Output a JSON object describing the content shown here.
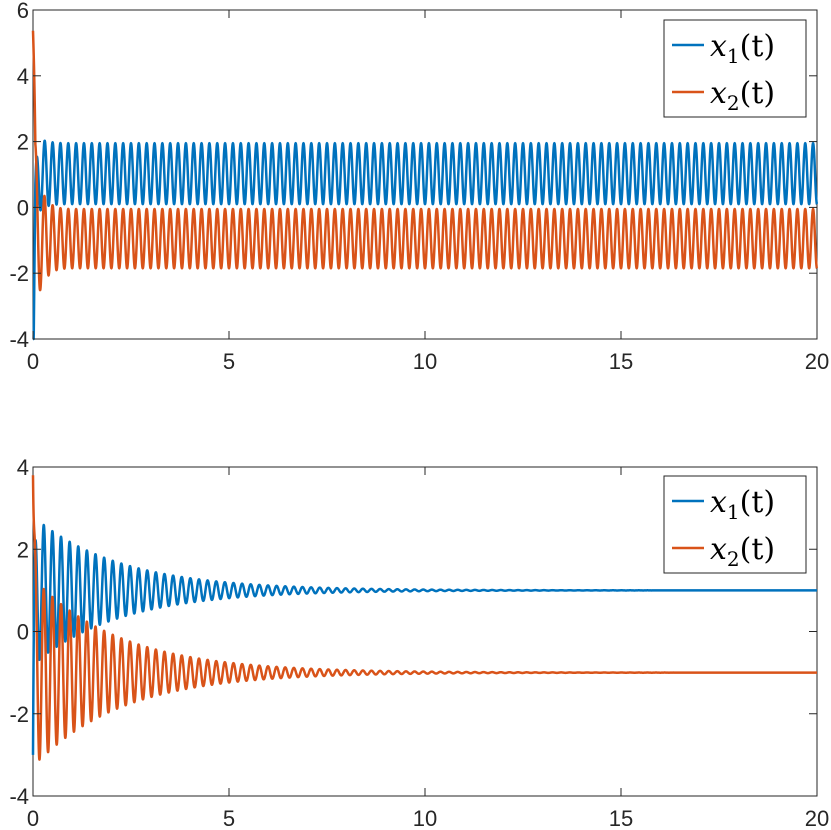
{
  "chart_data": [
    {
      "type": "line",
      "title": "",
      "xlabel": "",
      "ylabel": "",
      "xlim": [
        0,
        20
      ],
      "ylim": [
        -4,
        6
      ],
      "xticks": [
        "0",
        "5",
        "10",
        "15",
        "20"
      ],
      "yticks": [
        "-4",
        "-2",
        "0",
        "2",
        "4",
        "6"
      ],
      "grid": false,
      "legend_position": "top-right",
      "behavior": "sustained oscillation",
      "series": [
        {
          "name": "x_1(t)",
          "legend_base": "x",
          "legend_sub": "1",
          "legend_tail": "(t)",
          "color": "#0072BD",
          "initial": -3.6,
          "peak_initial": 3.2,
          "max": 1.95,
          "min": 0.1,
          "mid": 0.5,
          "period": 0.2
        },
        {
          "name": "x_2(t)",
          "legend_base": "x",
          "legend_sub": "2",
          "legend_tail": "(t)",
          "color": "#D95319",
          "initial": 3.0,
          "peak_initial": 5.3,
          "max": -0.05,
          "min": -1.85,
          "mid": -1.5,
          "period": 0.2
        }
      ]
    },
    {
      "type": "line",
      "title": "",
      "xlabel": "",
      "ylabel": "",
      "xlim": [
        0,
        20
      ],
      "ylim": [
        -4,
        4
      ],
      "xticks": [
        "0",
        "5",
        "10",
        "15",
        "20"
      ],
      "yticks": [
        "-4",
        "-2",
        "0",
        "2",
        "4"
      ],
      "grid": false,
      "legend_position": "top-right",
      "behavior": "damped oscillation",
      "series": [
        {
          "name": "x_1(t)",
          "legend_base": "x",
          "legend_sub": "1",
          "legend_tail": "(t)",
          "color": "#0072BD",
          "initial": -3.0,
          "steady_state": 1.0,
          "amplitude_initial": 1.8,
          "decay_rate": 0.45,
          "period": 0.22
        },
        {
          "name": "x_2(t)",
          "legend_base": "x",
          "legend_sub": "2",
          "legend_tail": "(t)",
          "color": "#D95319",
          "initial": 3.8,
          "steady_state": -1.0,
          "amplitude_initial": 2.3,
          "decay_rate": 0.45,
          "period": 0.22
        }
      ]
    }
  ]
}
